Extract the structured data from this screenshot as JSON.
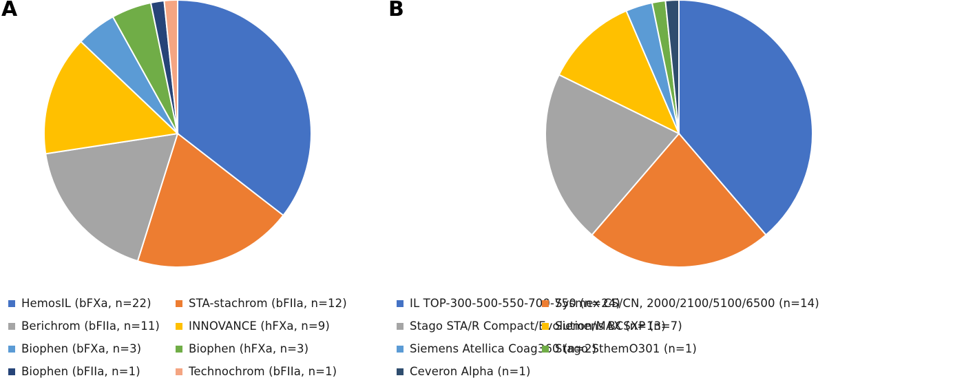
{
  "chart_data": [
    {
      "type": "pie",
      "panel_label": "A",
      "legend_placement": "bottom",
      "slices": [
        {
          "label": "HemosIL (bFXa, n=22)",
          "value": 22,
          "color": "#4472C4"
        },
        {
          "label": "STA-stachrom (bFIIa, n=12)",
          "value": 12,
          "color": "#ED7D31"
        },
        {
          "label": "Berichrom (bFIIa, n=11)",
          "value": 11,
          "color": "#A5A5A5"
        },
        {
          "label": "INNOVANCE (hFXa, n=9)",
          "value": 9,
          "color": "#FFC000"
        },
        {
          "label": "Biophen (bFXa, n=3)",
          "value": 3,
          "color": "#5B9BD5"
        },
        {
          "label": "Biophen (hFXa, n=3)",
          "value": 3,
          "color": "#70AD47"
        },
        {
          "label": "Biophen (bFIIa, n=1)",
          "value": 1,
          "color": "#264478"
        },
        {
          "label": "Technochrom (bFIIa, n=1)",
          "value": 1,
          "color": "#F4A582"
        }
      ]
    },
    {
      "type": "pie",
      "panel_label": "B",
      "legend_placement": "bottom",
      "slices": [
        {
          "label": "IL TOP-300-500-550-700-750 (n=24)",
          "value": 24,
          "color": "#4472C4"
        },
        {
          "label": "Sysmex CS/CN, 2000/2100/5100/6500 (n=14)",
          "value": 14,
          "color": "#ED7D31"
        },
        {
          "label": "Stago STA/R Compact/Evolution/MAX (n=13)",
          "value": 13,
          "color": "#A5A5A5"
        },
        {
          "label": "Siemens BCSXP (n=7)",
          "value": 7,
          "color": "#FFC000"
        },
        {
          "label": "Siemens Atellica Coag360 (n=2)",
          "value": 2,
          "color": "#5B9BD5"
        },
        {
          "label": "Stago SthemO301 (n=1)",
          "value": 1,
          "color": "#70AD47"
        },
        {
          "label": "Ceveron Alpha (n=1)",
          "value": 1,
          "color": "#2F4D6E"
        }
      ]
    }
  ]
}
